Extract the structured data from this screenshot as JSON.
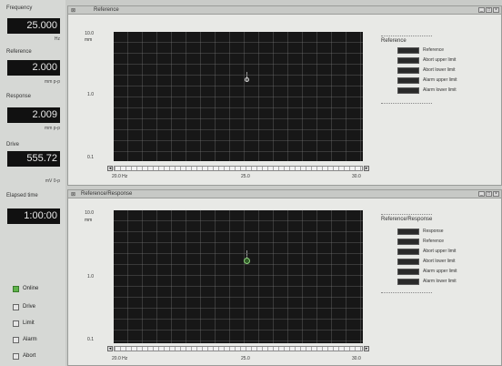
{
  "readouts": [
    {
      "label": "Frequency",
      "value": "25.000",
      "unit": "Hz"
    },
    {
      "label": "Reference",
      "value": "2.000",
      "unit": "mm p-p"
    },
    {
      "label": "Response",
      "value": "2.009",
      "unit": "mm p-p"
    },
    {
      "label": "Drive",
      "value": "555.72",
      "unit": "mV 0-p"
    },
    {
      "label": "Elapsed time",
      "value": "1:00:00",
      "unit": ""
    }
  ],
  "indicators": [
    {
      "label": "Online",
      "on": true
    },
    {
      "label": "Drive",
      "on": false
    },
    {
      "label": "Limit",
      "on": false
    },
    {
      "label": "Alarm",
      "on": false
    },
    {
      "label": "Abort",
      "on": false
    }
  ],
  "window_buttons": [
    "_",
    "□",
    "×"
  ],
  "panels": [
    {
      "title": "Reference",
      "y_ticks": [
        "10.0",
        "1.0",
        "0.1"
      ],
      "y_unit": "mm",
      "x_ticks": [
        "20.0 Hz",
        "25.0",
        "30.0"
      ],
      "legend_title": "Reference",
      "legend_items": [
        "Reference",
        "Abort upper limit",
        "Abort lower limit",
        "Alarm upper limit",
        "Alarm lower limit"
      ]
    },
    {
      "title": "Reference/Response",
      "y_ticks": [
        "10.0",
        "1.0",
        "0.1"
      ],
      "y_unit": "mm",
      "x_ticks": [
        "20.0 Hz",
        "25.0",
        "30.0"
      ],
      "legend_title": "Reference/Response",
      "legend_items": [
        "Response",
        "Reference",
        "Abort upper limit",
        "Abort lower limit",
        "Alarm upper limit",
        "Alarm lower limit"
      ]
    }
  ],
  "colors": {
    "plot_bg": "#171717",
    "online_led": "#5fb34a",
    "marker_response": "#8bd07a"
  }
}
